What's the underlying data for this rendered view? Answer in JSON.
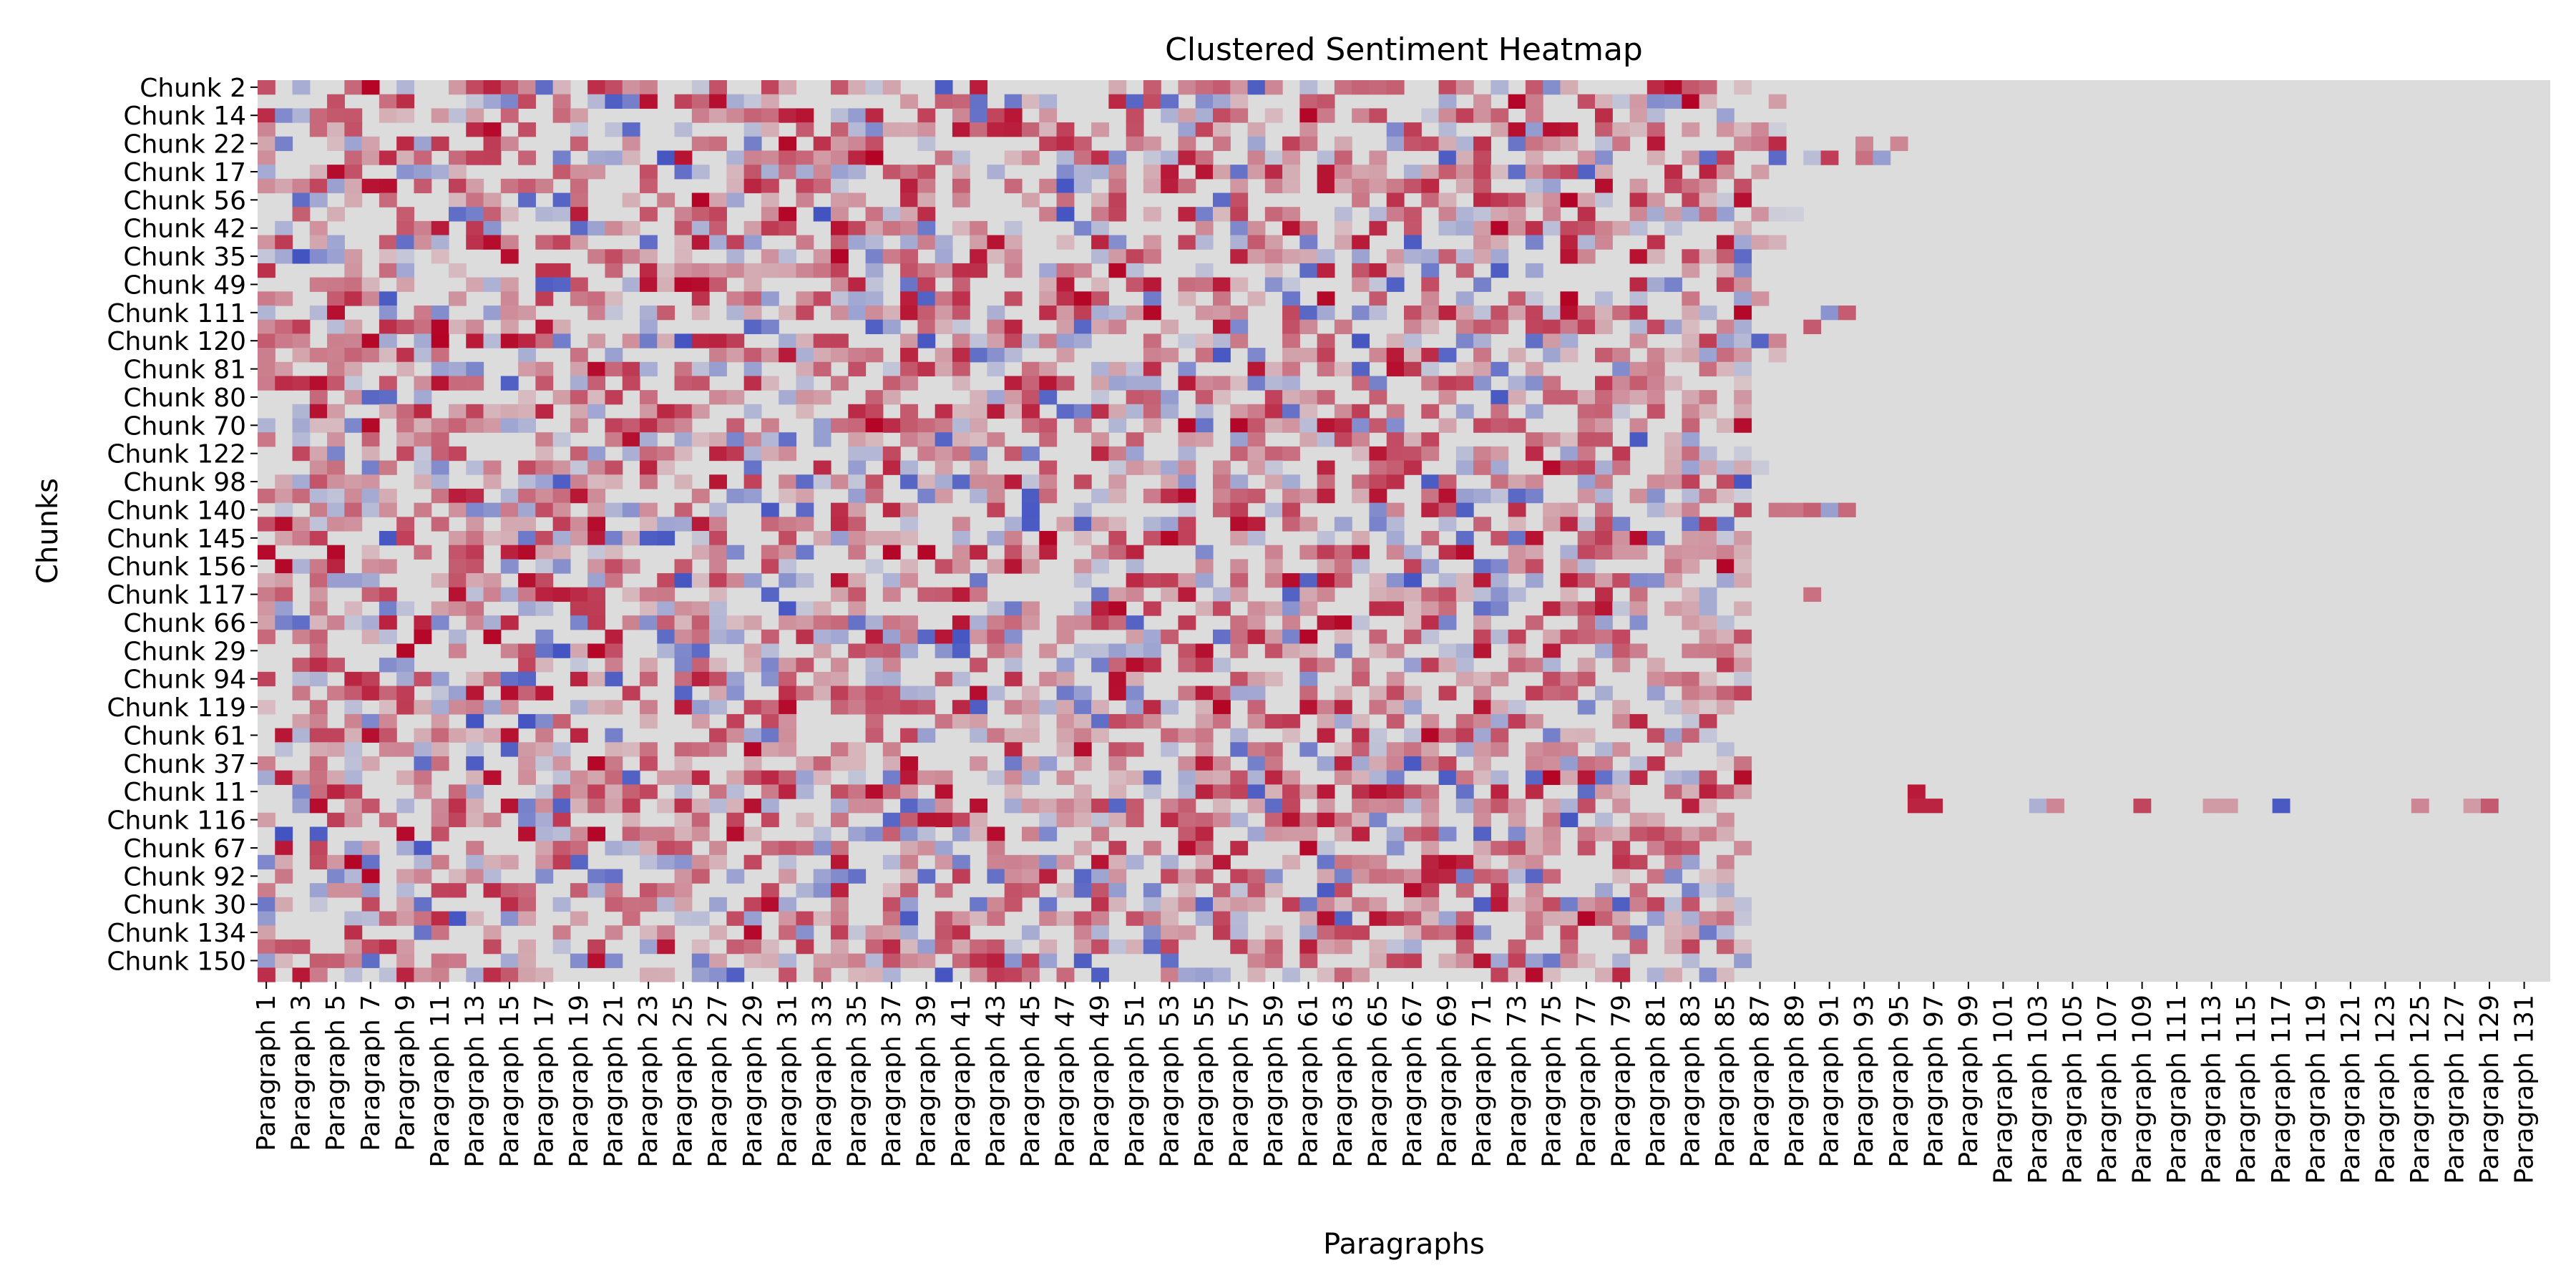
{
  "chart_data": {
    "type": "heatmap",
    "title": "Clustered Sentiment Heatmap",
    "xlabel": "Paragraphs",
    "ylabel": "Chunks",
    "x_tick_labels": [
      "Paragraph 1",
      "Paragraph 3",
      "Paragraph 5",
      "Paragraph 7",
      "Paragraph 9",
      "Paragraph 11",
      "Paragraph 13",
      "Paragraph 15",
      "Paragraph 17",
      "Paragraph 19",
      "Paragraph 21",
      "Paragraph 23",
      "Paragraph 25",
      "Paragraph 27",
      "Paragraph 29",
      "Paragraph 31",
      "Paragraph 33",
      "Paragraph 35",
      "Paragraph 37",
      "Paragraph 39",
      "Paragraph 41",
      "Paragraph 43",
      "Paragraph 45",
      "Paragraph 47",
      "Paragraph 49",
      "Paragraph 51",
      "Paragraph 53",
      "Paragraph 55",
      "Paragraph 57",
      "Paragraph 59",
      "Paragraph 61",
      "Paragraph 63",
      "Paragraph 65",
      "Paragraph 67",
      "Paragraph 69",
      "Paragraph 71",
      "Paragraph 73",
      "Paragraph 75",
      "Paragraph 77",
      "Paragraph 79",
      "Paragraph 81",
      "Paragraph 83",
      "Paragraph 85",
      "Paragraph 87",
      "Paragraph 89",
      "Paragraph 91",
      "Paragraph 93",
      "Paragraph 95",
      "Paragraph 97",
      "Paragraph 99",
      "Paragraph 101",
      "Paragraph 103",
      "Paragraph 105",
      "Paragraph 107",
      "Paragraph 109",
      "Paragraph 111",
      "Paragraph 113",
      "Paragraph 115",
      "Paragraph 117",
      "Paragraph 119",
      "Paragraph 121",
      "Paragraph 123",
      "Paragraph 125",
      "Paragraph 127",
      "Paragraph 129",
      "Paragraph 131"
    ],
    "y_tick_labels": [
      "Chunk 2",
      "Chunk 14",
      "Chunk 22",
      "Chunk 17",
      "Chunk 56",
      "Chunk 42",
      "Chunk 35",
      "Chunk 49",
      "Chunk 111",
      "Chunk 120",
      "Chunk 81",
      "Chunk 80",
      "Chunk 70",
      "Chunk 122",
      "Chunk 98",
      "Chunk 140",
      "Chunk 145",
      "Chunk 156",
      "Chunk 117",
      "Chunk 66",
      "Chunk 29",
      "Chunk 94",
      "Chunk 119",
      "Chunk 61",
      "Chunk 37",
      "Chunk 11",
      "Chunk 116",
      "Chunk 67",
      "Chunk 92",
      "Chunk 30",
      "Chunk 134",
      "Chunk 150"
    ],
    "n_columns": 132,
    "n_rows": 64,
    "value_range": [
      -1,
      1
    ],
    "colormap": "coolwarm",
    "colormap_stops": [
      "#3b4cc0",
      "#dddcdc",
      "#b40426"
    ],
    "grid": false,
    "legend": "none",
    "row_active_columns": [
      88,
      88,
      86,
      88,
      88,
      94,
      87,
      86,
      86,
      90,
      86,
      88,
      86,
      86,
      87,
      89,
      94,
      86,
      88,
      88,
      86,
      86,
      86,
      86,
      86,
      85,
      86,
      88,
      86,
      86,
      93,
      86,
      86,
      86,
      86,
      86,
      86,
      86,
      86,
      86,
      86,
      86,
      86,
      86,
      86,
      86,
      86,
      86,
      86,
      86,
      86,
      86,
      86,
      86,
      86,
      86,
      86,
      86,
      86,
      86,
      86,
      86,
      86,
      86
    ],
    "sparse_cells": [
      {
        "row": 50,
        "col": 95,
        "value": 0.9
      },
      {
        "row": 51,
        "col": 95,
        "value": 0.85
      },
      {
        "row": 51,
        "col": 96,
        "value": 0.85
      },
      {
        "row": 51,
        "col": 102,
        "value": -0.3
      },
      {
        "row": 51,
        "col": 103,
        "value": 0.4
      },
      {
        "row": 51,
        "col": 108,
        "value": 0.7
      },
      {
        "row": 51,
        "col": 112,
        "value": 0.3
      },
      {
        "row": 51,
        "col": 113,
        "value": 0.3
      },
      {
        "row": 51,
        "col": 116,
        "value": -0.9
      },
      {
        "row": 51,
        "col": 124,
        "value": 0.4
      },
      {
        "row": 51,
        "col": 127,
        "value": 0.3
      },
      {
        "row": 51,
        "col": 128,
        "value": 0.6
      },
      {
        "row": 17,
        "col": 89,
        "value": 0.6
      },
      {
        "row": 36,
        "col": 89,
        "value": 0.5
      },
      {
        "row": 4,
        "col": 92,
        "value": 0.4
      },
      {
        "row": 4,
        "col": 94,
        "value": 0.4
      }
    ]
  }
}
